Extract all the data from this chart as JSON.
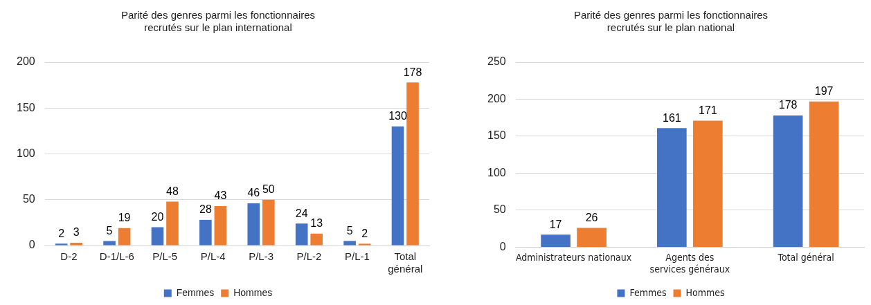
{
  "chart_data": [
    {
      "type": "bar",
      "title": "Parité des genres parmi les fonctionnaires recrutés sur le plan international",
      "categories": [
        "D-2",
        "D-1/L-6",
        "P/L-5",
        "P/L-4",
        "P/L-3",
        "P/L-2",
        "P/L-1",
        "Total général"
      ],
      "series": [
        {
          "name": "Femmes",
          "color": "#4472c4",
          "values": [
            2,
            5,
            20,
            28,
            46,
            24,
            5,
            130
          ]
        },
        {
          "name": "Hommes",
          "color": "#ed7d31",
          "values": [
            3,
            19,
            48,
            43,
            50,
            13,
            2,
            178
          ]
        }
      ],
      "ylim": [
        0,
        200
      ],
      "yticks": [
        0,
        50,
        100,
        150,
        200
      ],
      "grid": "y",
      "legend": "bottom",
      "data_labels": true
    },
    {
      "type": "bar",
      "title": "Parité des genres parmi les fonctionnaires recrutés sur le plan national",
      "categories": [
        "Administrateurs nationaux",
        "Agents des services généraux",
        "Total général"
      ],
      "series": [
        {
          "name": "Femmes",
          "color": "#4472c4",
          "values": [
            17,
            161,
            178
          ]
        },
        {
          "name": "Hommes",
          "color": "#ed7d31",
          "values": [
            26,
            171,
            197
          ]
        }
      ],
      "ylim": [
        0,
        250
      ],
      "yticks": [
        0,
        50,
        100,
        150,
        200,
        250
      ],
      "grid": "y",
      "legend": "bottom",
      "data_labels": true
    }
  ]
}
